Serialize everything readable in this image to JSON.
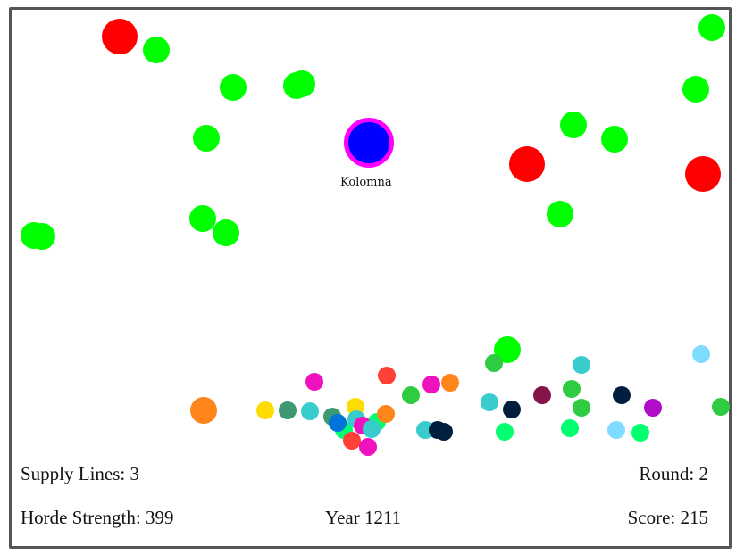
{
  "city": {
    "name": "Kolomna"
  },
  "hud": {
    "supply_lines": "Supply Lines: 3",
    "round": "Round: 2",
    "horde_strength": "Horde Strength: 399",
    "year": "Year 1211",
    "score": "Score: 215"
  },
  "colors": {
    "enemy": "#ff0000",
    "ally": "#00ff00",
    "city_fill": "#0000ff",
    "city_ring": "#ff00ff"
  }
}
